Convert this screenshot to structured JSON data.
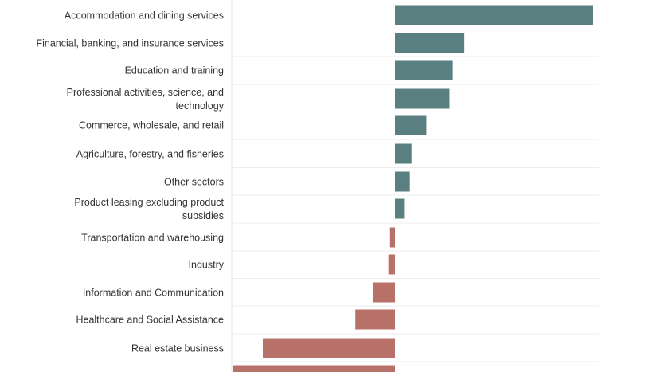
{
  "chart_data": {
    "type": "bar",
    "orientation": "horizontal",
    "title": "",
    "xlabel": "",
    "ylabel": "",
    "grid": true,
    "colors": {
      "positive": "#5a7f80",
      "negative": "#b87168"
    },
    "xlim": [
      -10,
      12
    ],
    "categories": [
      "Accommodation and dining services",
      "Financial, banking, and insurance services",
      "Education and training",
      "Professional activities, science, and technology",
      "Commerce, wholesale, and retail",
      "Agriculture, forestry, and fisheries",
      "Other sectors",
      "Product leasing excluding product subsidies",
      "Transportation and warehousing",
      "Industry",
      "Information and Communication",
      "Healthcare and Social Assistance",
      "Real estate business",
      ""
    ],
    "values": [
      12.0,
      4.2,
      3.5,
      3.3,
      1.9,
      1.0,
      0.9,
      0.55,
      -0.3,
      -0.4,
      -1.35,
      -2.4,
      -8.0,
      -9.8
    ]
  }
}
